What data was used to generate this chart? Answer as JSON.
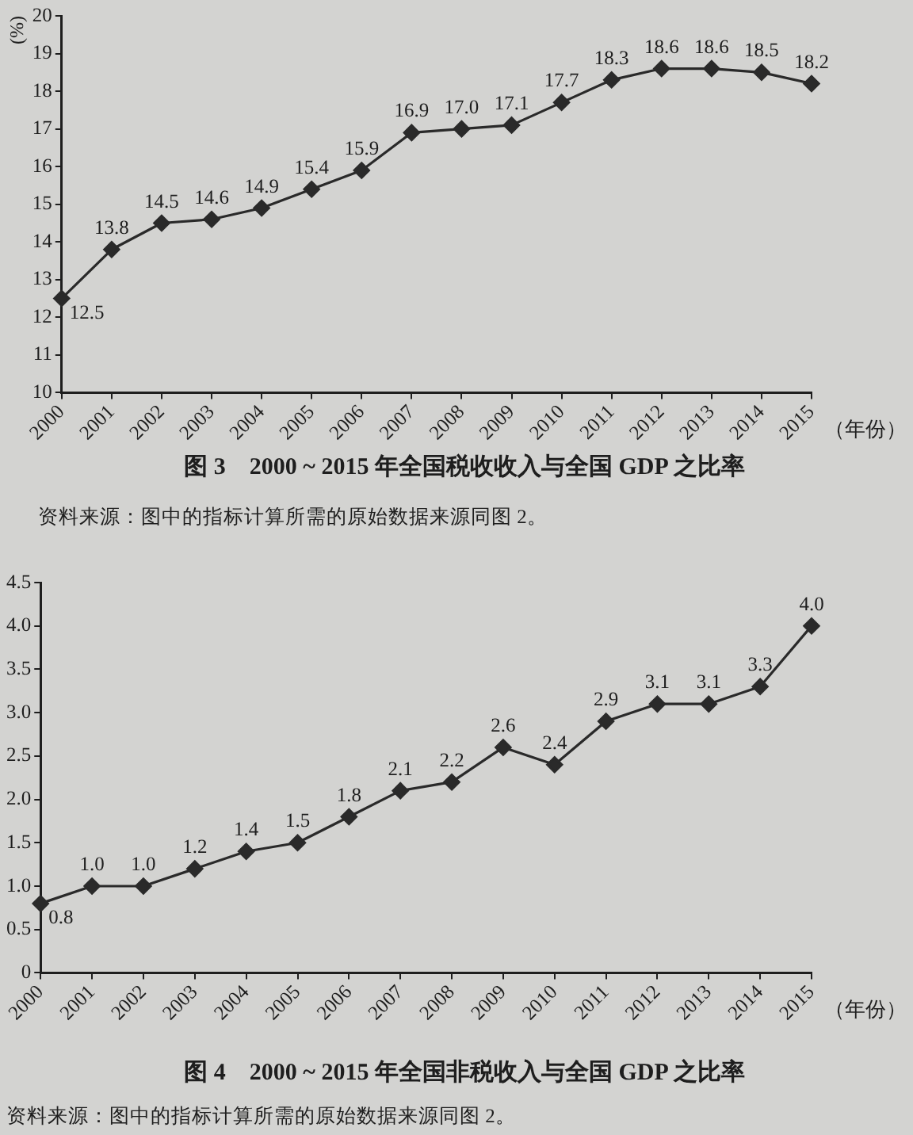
{
  "chart_data": [
    {
      "type": "line",
      "title": "图 3　2000 ~ 2015 年全国税收收入与全国 GDP 之比率",
      "ylabel": "(%)",
      "xlabel": "（年份）",
      "categories": [
        "2000",
        "2001",
        "2002",
        "2003",
        "2004",
        "2005",
        "2006",
        "2007",
        "2008",
        "2009",
        "2010",
        "2011",
        "2012",
        "2013",
        "2014",
        "2015"
      ],
      "values": [
        12.5,
        13.8,
        14.5,
        14.6,
        14.9,
        15.4,
        15.9,
        16.9,
        17.0,
        17.1,
        17.7,
        18.3,
        18.6,
        18.6,
        18.5,
        18.2
      ],
      "value_labels": [
        "12.5",
        "13.8",
        "14.5",
        "14.6",
        "14.9",
        "15.4",
        "15.9",
        "16.9",
        "17.0",
        "17.1",
        "17.7",
        "18.3",
        "18.6",
        "18.6",
        "18.5",
        "18.2"
      ],
      "color": "#2a2a2a",
      "ylim": [
        10,
        20
      ],
      "yticks": [
        10,
        11,
        12,
        13,
        14,
        15,
        16,
        17,
        18,
        19,
        20
      ],
      "grid": false,
      "legend": false,
      "marker": "diamond",
      "line_style": "solid",
      "annotations": [
        "资料来源：图中的指标计算所需的原始数据来源同图 2。"
      ]
    },
    {
      "type": "line",
      "title": "图 4　2000 ~ 2015 年全国非税收入与全国 GDP 之比率",
      "xlabel": "（年份）",
      "categories": [
        "2000",
        "2001",
        "2002",
        "2003",
        "2004",
        "2005",
        "2006",
        "2007",
        "2008",
        "2009",
        "2010",
        "2011",
        "2012",
        "2013",
        "2014",
        "2015"
      ],
      "values": [
        0.8,
        1.0,
        1.0,
        1.2,
        1.4,
        1.5,
        1.8,
        2.1,
        2.2,
        2.6,
        2.4,
        2.9,
        3.1,
        3.1,
        3.3,
        4.0
      ],
      "value_labels": [
        "0.8",
        "1.0",
        "1.0",
        "1.2",
        "1.4",
        "1.5",
        "1.8",
        "2.1",
        "2.2",
        "2.6",
        "2.4",
        "2.9",
        "3.1",
        "3.1",
        "3.3",
        "4.0"
      ],
      "color": "#2a2a2a",
      "ylim": [
        0,
        4.5
      ],
      "yticks": [
        0,
        0.5,
        {
          "value": 1,
          "label": "1.0"
        },
        1.5,
        {
          "value": 2,
          "label": "2.0"
        },
        2.5,
        {
          "value": 3,
          "label": "3.0"
        },
        3.5,
        {
          "value": 4,
          "label": "4.0"
        },
        4.5
      ],
      "grid": false,
      "legend": false,
      "marker": "diamond",
      "line_style": "solid",
      "annotations": [
        "资料来源：图中的指标计算所需的原始数据来源同图 2。"
      ]
    }
  ]
}
